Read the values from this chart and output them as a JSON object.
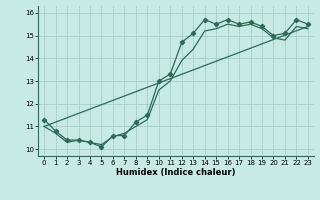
{
  "xlabel": "Humidex (Indice chaleur)",
  "ylabel": "",
  "xlim": [
    -0.5,
    23.5
  ],
  "ylim": [
    9.7,
    16.3
  ],
  "yticks": [
    10,
    11,
    12,
    13,
    14,
    15,
    16
  ],
  "xticks": [
    0,
    1,
    2,
    3,
    4,
    5,
    6,
    7,
    8,
    9,
    10,
    11,
    12,
    13,
    14,
    15,
    16,
    17,
    18,
    19,
    20,
    21,
    22,
    23
  ],
  "bg_color": "#c8eae4",
  "grid_color": "#a0c8c0",
  "line_color": "#2d6b58",
  "line1_x": [
    0,
    1,
    2,
    3,
    4,
    5,
    6,
    7,
    8,
    9,
    10,
    11,
    12,
    13,
    14,
    15,
    16,
    17,
    18,
    19,
    20,
    21,
    22,
    23
  ],
  "line1_y": [
    11.3,
    10.8,
    10.4,
    10.4,
    10.3,
    10.1,
    10.6,
    10.6,
    11.2,
    11.5,
    13.0,
    13.3,
    14.7,
    15.1,
    15.7,
    15.5,
    15.7,
    15.5,
    15.6,
    15.4,
    15.0,
    15.1,
    15.7,
    15.5
  ],
  "line2_x": [
    0,
    1,
    2,
    3,
    4,
    5,
    6,
    7,
    8,
    9,
    10,
    11,
    12,
    13,
    14,
    15,
    16,
    17,
    18,
    19,
    20,
    21,
    22,
    23
  ],
  "line2_y": [
    11.0,
    10.7,
    10.3,
    10.4,
    10.3,
    10.2,
    10.55,
    10.7,
    11.0,
    11.3,
    12.6,
    13.0,
    13.9,
    14.4,
    15.2,
    15.3,
    15.5,
    15.4,
    15.5,
    15.3,
    14.9,
    14.8,
    15.4,
    15.3
  ],
  "line3_x": [
    0,
    23
  ],
  "line3_y": [
    11.0,
    15.4
  ]
}
